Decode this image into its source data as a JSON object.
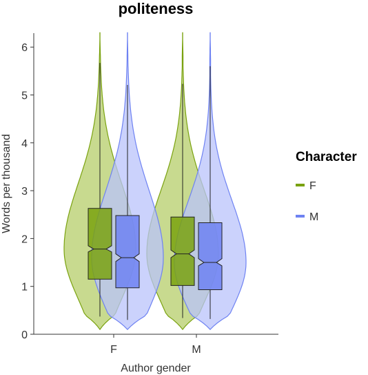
{
  "chart_data": {
    "type": "violin",
    "title": "politeness",
    "xlabel": "Author gender",
    "ylabel": "Words per thousand",
    "categories": [
      "F",
      "M"
    ],
    "ylim": [
      0,
      6.3
    ],
    "yticks": [
      0,
      1,
      2,
      3,
      4,
      5,
      6
    ],
    "grid": false,
    "legend": {
      "title": "Character",
      "placement": "right",
      "entries": [
        "F",
        "M"
      ]
    },
    "series": [
      {
        "name": "F",
        "color": "#7aa20f",
        "fill": "#b6cd6a",
        "stats": [
          {
            "category": "F",
            "q1": 1.15,
            "median": 1.78,
            "q3": 2.63,
            "notch_low": 1.72,
            "notch_high": 1.85,
            "whisker_low": 0.37,
            "whisker_high": 5.67,
            "violin_min": 0.1,
            "violin_max": 6.3
          },
          {
            "category": "M",
            "q1": 1.02,
            "median": 1.68,
            "q3": 2.45,
            "notch_low": 1.6,
            "notch_high": 1.76,
            "whisker_low": 0.34,
            "whisker_high": 5.23,
            "violin_min": 0.1,
            "violin_max": 6.3
          }
        ]
      },
      {
        "name": "M",
        "color": "#6e82f2",
        "fill": "#b9c3fb",
        "stats": [
          {
            "category": "F",
            "q1": 0.97,
            "median": 1.6,
            "q3": 2.48,
            "notch_low": 1.52,
            "notch_high": 1.68,
            "whisker_low": 0.3,
            "whisker_high": 5.21,
            "violin_min": 0.1,
            "violin_max": 6.3
          },
          {
            "category": "M",
            "q1": 0.93,
            "median": 1.5,
            "q3": 2.33,
            "notch_low": 1.43,
            "notch_high": 1.58,
            "whisker_low": 0.32,
            "whisker_high": 5.6,
            "violin_min": 0.1,
            "violin_max": 6.3
          }
        ]
      }
    ]
  }
}
